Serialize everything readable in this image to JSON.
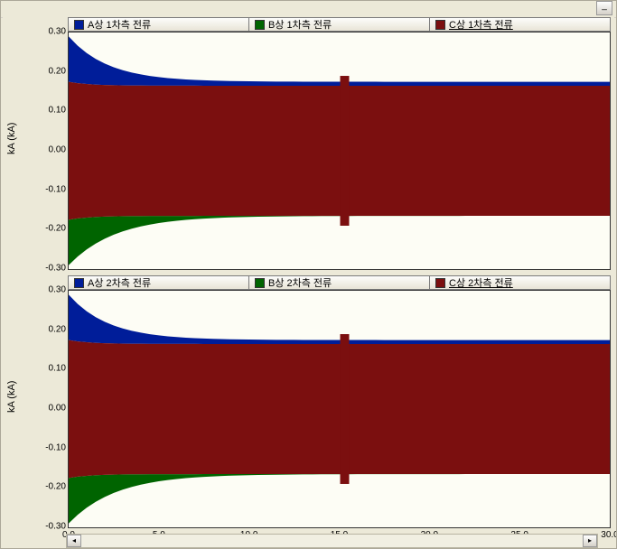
{
  "ylabel": "kA (kA)",
  "ylim": [
    -0.3,
    0.3
  ],
  "yticks": [
    -0.3,
    -0.2,
    -0.1,
    0.0,
    0.1,
    0.2,
    0.3
  ],
  "xlim": [
    0.0,
    30.0
  ],
  "xticks": [
    0.0,
    5.0,
    10.0,
    15.0,
    20.0,
    25.0,
    30.0
  ],
  "background_color": "#fdfdf5",
  "window_bg": "#ece9d8",
  "panels": [
    {
      "legend": [
        {
          "label": "A상 1차측 전류",
          "color": "#001d99"
        },
        {
          "label": "B상 1차측 전류",
          "color": "#006400"
        },
        {
          "label": "C상 1차측 전류",
          "color": "#7b0f0f",
          "underline": true
        }
      ]
    },
    {
      "legend": [
        {
          "label": "A상 2차측 전류",
          "color": "#001d99"
        },
        {
          "label": "B상 2차측 전류",
          "color": "#006400"
        },
        {
          "label": "C상 2차측 전류",
          "color": "#7b0f0f",
          "underline": true
        }
      ]
    }
  ],
  "series_style": {
    "A": {
      "color": "#001d99",
      "env_start": 0.29,
      "env_end": 0.175
    },
    "B": {
      "color": "#006400",
      "env_start": 0.29,
      "env_end": 0.165
    },
    "C": {
      "color": "#7b0f0f",
      "env_start": 0.175,
      "env_end": 0.165,
      "notch_x": 15.3,
      "notch_width": 0.5,
      "notch_amp": 0.19
    }
  },
  "scroll": {
    "left_arrow": "◂",
    "right_arrow": "▸"
  },
  "minimize_label": "_"
}
